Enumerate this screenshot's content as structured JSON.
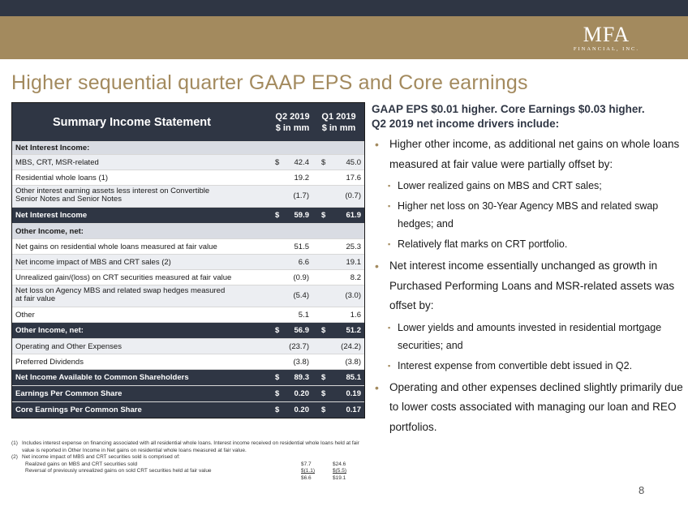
{
  "header": {
    "logo_main": "MFA",
    "logo_sub": "FINANCIAL, INC.",
    "title": "Higher sequential quarter GAAP EPS and Core earnings"
  },
  "table": {
    "title": "Summary Income Statement",
    "col1": "Q2 2019\n$ in mm",
    "col2": "Q1 2019\n$ in mm",
    "rows": [
      {
        "label": "Net Interest Income:",
        "c1d": "",
        "c1": "",
        "c2d": "",
        "c2": ""
      },
      {
        "label": "MBS, CRT, MSR-related",
        "c1d": "$",
        "c1": "42.4",
        "c2d": "$",
        "c2": "45.0"
      },
      {
        "label": "Residential whole loans (1)",
        "c1d": "",
        "c1": "19.2",
        "c2d": "",
        "c2": "17.6"
      },
      {
        "label": "Other interest earning assets less interest on Convertible\nSenior Notes and Senior Notes",
        "c1d": "",
        "c1": "(1.7)",
        "c2d": "",
        "c2": "(0.7)"
      },
      {
        "label": "Net Interest Income",
        "c1d": "$",
        "c1": "59.9",
        "c2d": "$",
        "c2": "61.9"
      },
      {
        "label": "Other Income, net:",
        "c1d": "",
        "c1": "",
        "c2d": "",
        "c2": ""
      },
      {
        "label": "Net gains on residential whole loans measured at fair value",
        "c1d": "",
        "c1": "51.5",
        "c2d": "",
        "c2": "25.3"
      },
      {
        "label": "Net income impact of MBS and CRT sales (2)",
        "c1d": "",
        "c1": "6.6",
        "c2d": "",
        "c2": "19.1"
      },
      {
        "label": "Unrealized gain/(loss) on CRT securities measured at fair value",
        "c1d": "",
        "c1": "(0.9)",
        "c2d": "",
        "c2": "8.2"
      },
      {
        "label": "Net loss on Agency MBS and related swap hedges measured\nat fair value",
        "c1d": "",
        "c1": "(5.4)",
        "c2d": "",
        "c2": "(3.0)"
      },
      {
        "label": "Other",
        "c1d": "",
        "c1": "5.1",
        "c2d": "",
        "c2": "1.6"
      },
      {
        "label": "Other Income, net:",
        "c1d": "$",
        "c1": "56.9",
        "c2d": "$",
        "c2": "51.2"
      },
      {
        "label": "Operating and Other Expenses",
        "c1d": "",
        "c1": "(23.7)",
        "c2d": "",
        "c2": "(24.2)"
      },
      {
        "label": "Preferred Dividends",
        "c1d": "",
        "c1": "(3.8)",
        "c2d": "",
        "c2": "(3.8)"
      },
      {
        "label": "Net Income Available to Common Shareholders",
        "c1d": "$",
        "c1": "89.3",
        "c2d": "$",
        "c2": "85.1"
      },
      {
        "label": "Earnings Per Common Share",
        "c1d": "$",
        "c1": "0.20",
        "c2d": "$",
        "c2": "0.19"
      },
      {
        "label": "Core Earnings Per Common Share",
        "c1d": "$",
        "c1": "0.20",
        "c2d": "$",
        "c2": "0.17"
      }
    ]
  },
  "footnotes": {
    "fn1_num": "(1)",
    "fn1": "Includes interest expense on financing associated with all residential whole loans. Interest income received on residential whole loans held at fair value is reported in Other Income in Net gains on residential whole loans measured at fair value.",
    "fn2_num": "(2)",
    "fn2": "Net income impact of MBS and CRT securities sold is comprised of:",
    "fn2_rows": [
      {
        "label": "Realized gains on MBS and CRT securities sold",
        "a": "$7.7",
        "b": "$24.6"
      },
      {
        "label": "Reversal of previously unrealized gains on sold CRT securities held at fair value",
        "a": "$(1.1)",
        "b": "$(5.5)"
      },
      {
        "label": "",
        "a": "$6.6",
        "b": "$19.1"
      }
    ]
  },
  "right": {
    "intro": "GAAP EPS $0.01 higher.  Core Earnings $0.03 higher.\nQ2 2019 net income drivers include:",
    "b1": "Higher other income, as additional net gains on whole loans measured at fair value were partially offset by:",
    "s1": "Lower realized gains on MBS and CRT sales;",
    "s2": "Higher net loss on 30-Year Agency MBS and related swap hedges; and",
    "s3": "Relatively flat marks on CRT portfolio.",
    "b2": "Net interest income essentially unchanged as growth in Purchased Performing Loans and MSR-related assets was offset by:",
    "s4": "Lower yields and amounts invested in residential mortgage securities; and",
    "s5": "Interest expense from convertible debt issued in Q2.",
    "b3": "Operating and other expenses declined slightly primarily due to lower costs associated with managing our loan and REO portfolios."
  },
  "page_number": "8"
}
